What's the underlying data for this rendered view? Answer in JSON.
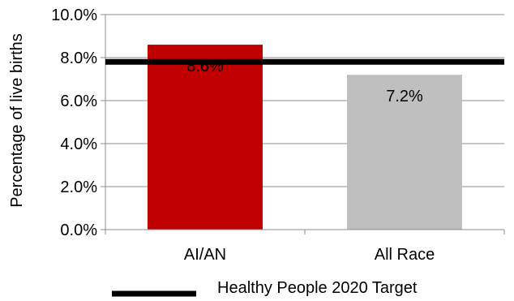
{
  "chart_data": {
    "type": "bar",
    "title": "",
    "xlabel": "",
    "ylabel": "Percentage of live births",
    "categories": [
      "AI/AN",
      "All Race"
    ],
    "values": [
      8.6,
      7.2
    ],
    "data_labels": [
      "8.6%",
      "7.2%"
    ],
    "bar_colors": [
      "#c00000",
      "#bfbfbf"
    ],
    "ylim": [
      0,
      10
    ],
    "yticks": [
      0,
      2,
      4,
      6,
      8,
      10
    ],
    "ytick_labels": [
      "0.0%",
      "2.0%",
      "4.0%",
      "6.0%",
      "8.0%",
      "10.0%"
    ],
    "grid": true,
    "target": {
      "name": "Healthy People 2020 Target",
      "value": 7.8,
      "color": "#000000"
    },
    "legend": {
      "placement": "bottom",
      "entries": [
        "Healthy People 2020 Target"
      ]
    }
  }
}
